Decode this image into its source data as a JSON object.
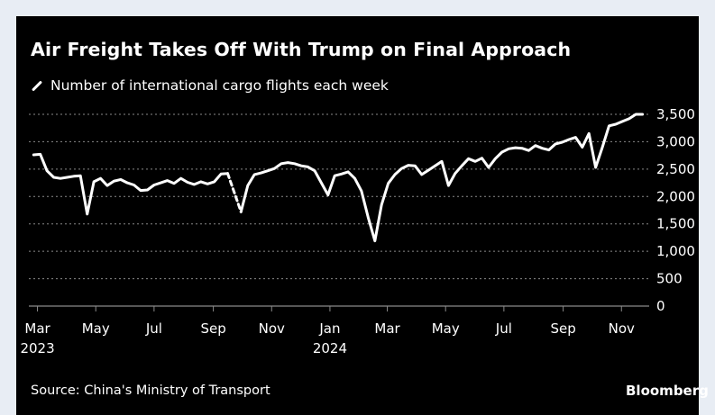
{
  "title": "Air Freight Takes Off With Trump on Final Approach",
  "legend_label": "Number of international cargo flights each week",
  "source": "Source: China's Ministry of Transport",
  "brand": "Bloomberg",
  "colors": {
    "background": "#000000",
    "line": "#ffffff",
    "grid": "#8a8a8a",
    "page": "#e8edf4"
  },
  "chart_data": {
    "type": "line",
    "title": "Air Freight Takes Off With Trump on Final Approach",
    "xlabel": "",
    "ylabel": "",
    "ylim": [
      0,
      3500
    ],
    "yticks": [
      0,
      500,
      1000,
      1500,
      2000,
      2500,
      3000,
      3500
    ],
    "ytick_labels": [
      "0",
      "500",
      "1,000",
      "1,500",
      "2,000",
      "2,500",
      "3,000",
      "3,500"
    ],
    "y_axis_side": "right",
    "grid": true,
    "xlim": [
      "2023-02-20",
      "2024-11-30"
    ],
    "xticks": [
      {
        "date": "2023-03-01",
        "label": "Mar",
        "sublabel": "2023"
      },
      {
        "date": "2023-05-01",
        "label": "May",
        "sublabel": ""
      },
      {
        "date": "2023-07-01",
        "label": "Jul",
        "sublabel": ""
      },
      {
        "date": "2023-09-01",
        "label": "Sep",
        "sublabel": ""
      },
      {
        "date": "2023-11-01",
        "label": "Nov",
        "sublabel": ""
      },
      {
        "date": "2024-01-01",
        "label": "Jan",
        "sublabel": "2024"
      },
      {
        "date": "2024-03-01",
        "label": "Mar",
        "sublabel": ""
      },
      {
        "date": "2024-05-01",
        "label": "May",
        "sublabel": ""
      },
      {
        "date": "2024-07-01",
        "label": "Jul",
        "sublabel": ""
      },
      {
        "date": "2024-09-01",
        "label": "Sep",
        "sublabel": ""
      },
      {
        "date": "2024-11-01",
        "label": "Nov",
        "sublabel": ""
      }
    ],
    "series": [
      {
        "name": "Number of international cargo flights each week",
        "segments": [
          {
            "style": "solid",
            "points": [
              [
                "2023-02-25",
                2760
              ],
              [
                "2023-03-04",
                2770
              ],
              [
                "2023-03-11",
                2470
              ],
              [
                "2023-03-18",
                2350
              ],
              [
                "2023-03-25",
                2330
              ],
              [
                "2023-04-01",
                2350
              ],
              [
                "2023-04-08",
                2370
              ],
              [
                "2023-04-15",
                2380
              ],
              [
                "2023-04-22",
                1680
              ],
              [
                "2023-04-29",
                2270
              ],
              [
                "2023-05-06",
                2330
              ],
              [
                "2023-05-13",
                2200
              ],
              [
                "2023-05-20",
                2280
              ],
              [
                "2023-05-27",
                2310
              ],
              [
                "2023-06-03",
                2250
              ],
              [
                "2023-06-10",
                2210
              ],
              [
                "2023-06-17",
                2110
              ],
              [
                "2023-06-24",
                2120
              ],
              [
                "2023-07-01",
                2210
              ],
              [
                "2023-07-08",
                2250
              ],
              [
                "2023-07-15",
                2290
              ],
              [
                "2023-07-22",
                2240
              ],
              [
                "2023-07-29",
                2330
              ],
              [
                "2023-08-05",
                2260
              ],
              [
                "2023-08-12",
                2220
              ],
              [
                "2023-08-19",
                2270
              ],
              [
                "2023-08-26",
                2230
              ],
              [
                "2023-09-02",
                2270
              ],
              [
                "2023-09-09",
                2410
              ],
              [
                "2023-09-16",
                2420
              ]
            ]
          },
          {
            "style": "dashed",
            "points": [
              [
                "2023-09-16",
                2420
              ],
              [
                "2023-09-23",
                2070
              ],
              [
                "2023-09-30",
                1720
              ]
            ]
          },
          {
            "style": "solid",
            "points": [
              [
                "2023-09-30",
                1720
              ],
              [
                "2023-10-07",
                2200
              ],
              [
                "2023-10-14",
                2400
              ],
              [
                "2023-10-21",
                2430
              ],
              [
                "2023-10-28",
                2470
              ],
              [
                "2023-11-04",
                2510
              ],
              [
                "2023-11-11",
                2600
              ],
              [
                "2023-11-18",
                2620
              ],
              [
                "2023-11-25",
                2600
              ],
              [
                "2023-12-02",
                2560
              ],
              [
                "2023-12-09",
                2540
              ],
              [
                "2023-12-16",
                2470
              ],
              [
                "2023-12-23",
                2250
              ],
              [
                "2023-12-30",
                2030
              ],
              [
                "2024-01-06",
                2380
              ],
              [
                "2024-01-13",
                2410
              ],
              [
                "2024-01-20",
                2450
              ],
              [
                "2024-01-27",
                2330
              ],
              [
                "2024-02-03",
                2100
              ],
              [
                "2024-02-10",
                1620
              ],
              [
                "2024-02-17",
                1190
              ],
              [
                "2024-02-24",
                1850
              ],
              [
                "2024-03-02",
                2240
              ],
              [
                "2024-03-09",
                2400
              ],
              [
                "2024-03-16",
                2510
              ],
              [
                "2024-03-23",
                2570
              ],
              [
                "2024-03-30",
                2560
              ],
              [
                "2024-04-06",
                2400
              ],
              [
                "2024-04-13",
                2480
              ],
              [
                "2024-04-20",
                2560
              ],
              [
                "2024-04-27",
                2640
              ],
              [
                "2024-05-04",
                2200
              ],
              [
                "2024-05-11",
                2420
              ],
              [
                "2024-05-18",
                2560
              ],
              [
                "2024-05-25",
                2690
              ],
              [
                "2024-06-01",
                2640
              ],
              [
                "2024-06-08",
                2700
              ],
              [
                "2024-06-15",
                2530
              ],
              [
                "2024-06-22",
                2690
              ],
              [
                "2024-06-29",
                2810
              ],
              [
                "2024-07-06",
                2870
              ],
              [
                "2024-07-13",
                2890
              ],
              [
                "2024-07-20",
                2880
              ],
              [
                "2024-07-27",
                2840
              ],
              [
                "2024-08-03",
                2930
              ],
              [
                "2024-08-10",
                2880
              ],
              [
                "2024-08-17",
                2850
              ],
              [
                "2024-08-24",
                2960
              ],
              [
                "2024-08-31",
                2990
              ],
              [
                "2024-09-07",
                3040
              ],
              [
                "2024-09-14",
                3080
              ],
              [
                "2024-09-21",
                2900
              ],
              [
                "2024-09-28",
                3150
              ],
              [
                "2024-10-05",
                2530
              ],
              [
                "2024-10-12",
                2900
              ],
              [
                "2024-10-19",
                3290
              ],
              [
                "2024-10-26",
                3320
              ],
              [
                "2024-11-02",
                3370
              ],
              [
                "2024-11-09",
                3420
              ],
              [
                "2024-11-16",
                3500
              ],
              [
                "2024-11-23",
                3500
              ]
            ]
          }
        ]
      }
    ]
  }
}
